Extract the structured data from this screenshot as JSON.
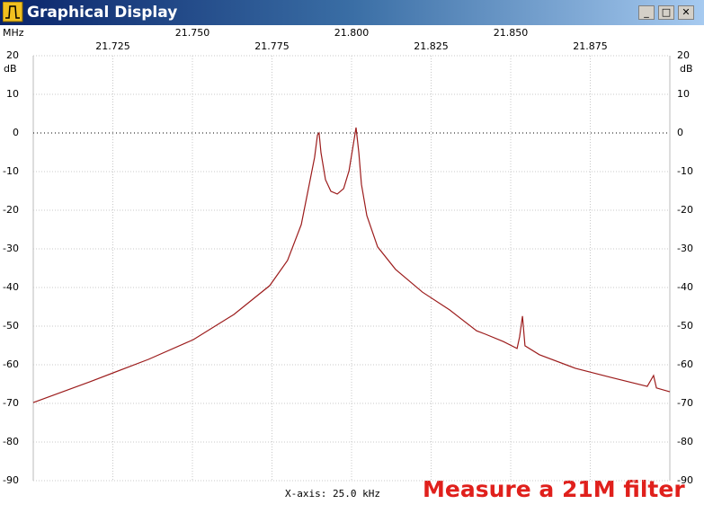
{
  "window": {
    "title": "Graphical Display"
  },
  "chart_data": {
    "type": "line",
    "xlabel": "MHz",
    "ylabel": "dB",
    "x_step_label": "X-axis: 25.0 kHz",
    "annotation": "Measure a 21M filter",
    "xlim": [
      21.7,
      21.9
    ],
    "xticks": [
      21.725,
      {
        "value": 21.75,
        "label": "21.750"
      },
      21.775,
      {
        "value": 21.8,
        "label": "21.800"
      },
      21.825,
      {
        "value": 21.85,
        "label": "21.850"
      },
      21.875
    ],
    "ylim": [
      -90,
      20
    ],
    "yticks": [
      20,
      10,
      0,
      -10,
      -20,
      -30,
      -40,
      -50,
      -60,
      -70,
      -80,
      -90
    ],
    "grid": true,
    "x": [
      21.7,
      21.7178,
      21.7362,
      21.7503,
      21.763,
      21.7743,
      21.7799,
      21.7842,
      21.787,
      21.7884,
      21.7893,
      21.7898,
      21.7904,
      21.7918,
      21.7935,
      21.7955,
      21.7975,
      21.7992,
      21.8006,
      21.8014,
      21.8023,
      21.8031,
      21.8048,
      21.8082,
      21.8138,
      21.8223,
      21.8308,
      21.8393,
      21.8421,
      21.8477,
      21.852,
      21.8528,
      21.8537,
      21.8545,
      21.859,
      21.8703,
      21.8816,
      21.8929,
      21.8949,
      21.8958,
      21.9
    ],
    "series": [
      {
        "color": "#9c1c1c",
        "values": [
          -69.8,
          -64.4,
          -58.6,
          -53.5,
          -47.0,
          -39.5,
          -33.0,
          -23.7,
          -12.1,
          -6.3,
          -0.5,
          0,
          -5.1,
          -12.1,
          -15.1,
          -15.8,
          -14.4,
          -9.8,
          -2.8,
          1.4,
          -5.1,
          -13.3,
          -21.4,
          -29.5,
          -35.3,
          -41.2,
          -45.8,
          -51.2,
          -52.1,
          -54.0,
          -55.8,
          -52.8,
          -47.4,
          -55.1,
          -57.4,
          -60.9,
          -63.3,
          -65.6,
          -62.8,
          -66.0,
          -67.0
        ]
      }
    ]
  }
}
